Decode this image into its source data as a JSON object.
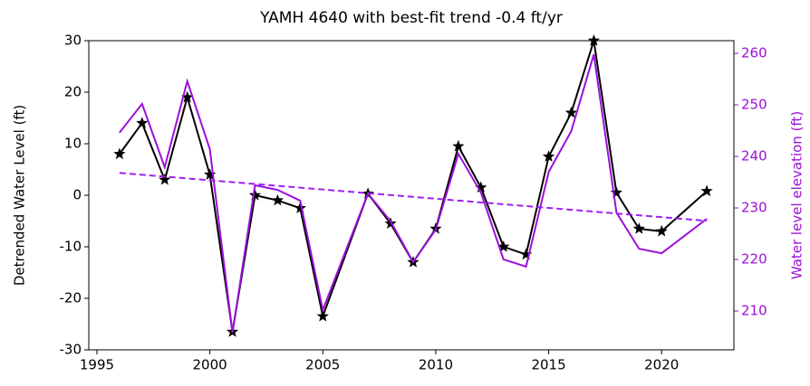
{
  "chart_data": {
    "type": "line",
    "title": "YAMH 4640 with best-fit trend -0.4 ft/yr",
    "y_label": "Detrended Water Level (ft)",
    "y2_label": "Water level elevation (ft)",
    "xlim": [
      1994.64,
      2023.2
    ],
    "xticks": [
      1995,
      2000,
      2005,
      2010,
      2015,
      2020
    ],
    "ylim": [
      -30,
      30
    ],
    "yticks": [
      -30,
      -20,
      -10,
      0,
      10,
      20,
      30
    ],
    "y2lim": [
      202.46,
      262.46
    ],
    "y2ticks": [
      210,
      220,
      230,
      240,
      250,
      260
    ],
    "y2color": "#9b10d8",
    "series": [
      {
        "color": "#000000",
        "marker": "star",
        "dashed": false,
        "x": [
          1996,
          1997,
          1998,
          1999,
          2000,
          2001,
          2002,
          2003,
          2004,
          2005,
          2007,
          2008,
          2009,
          2010,
          2011,
          2012,
          2013,
          2014,
          2015,
          2016,
          2017,
          2018,
          2019,
          2020,
          2022
        ],
        "values": [
          8,
          14,
          3,
          19,
          4,
          -26.5,
          0,
          -1,
          -2.5,
          -23.5,
          0.3,
          -5.5,
          -13,
          -6.5,
          9.5,
          1.5,
          -10,
          -11.5,
          7.5,
          16,
          30,
          0.5,
          -6.5,
          -7,
          0.8
        ]
      },
      {
        "color": "#9b10d8",
        "axis": "y2",
        "dashed": false,
        "x": [
          1996,
          1997,
          1998,
          1999,
          2000,
          2001,
          2002,
          2003,
          2004,
          2005,
          2007,
          2008,
          2009,
          2010,
          2011,
          2012,
          2013,
          2014,
          2015,
          2016,
          2017,
          2018,
          2019,
          2020,
          2022
        ],
        "values": [
          244.6,
          250.2,
          237.9,
          254.6,
          241.4,
          205.8,
          234.4,
          233.5,
          231.4,
          210.2,
          232.8,
          227.4,
          219.5,
          225.8,
          240.5,
          233,
          220,
          218.6,
          237,
          244.9,
          259.8,
          229.1,
          222.1,
          221.2,
          227.9
        ]
      },
      {
        "color": "#a020f0",
        "axis": "y2",
        "dashed": true,
        "x": [
          1996,
          2022
        ],
        "values": [
          236.8,
          227.5
        ]
      }
    ]
  }
}
